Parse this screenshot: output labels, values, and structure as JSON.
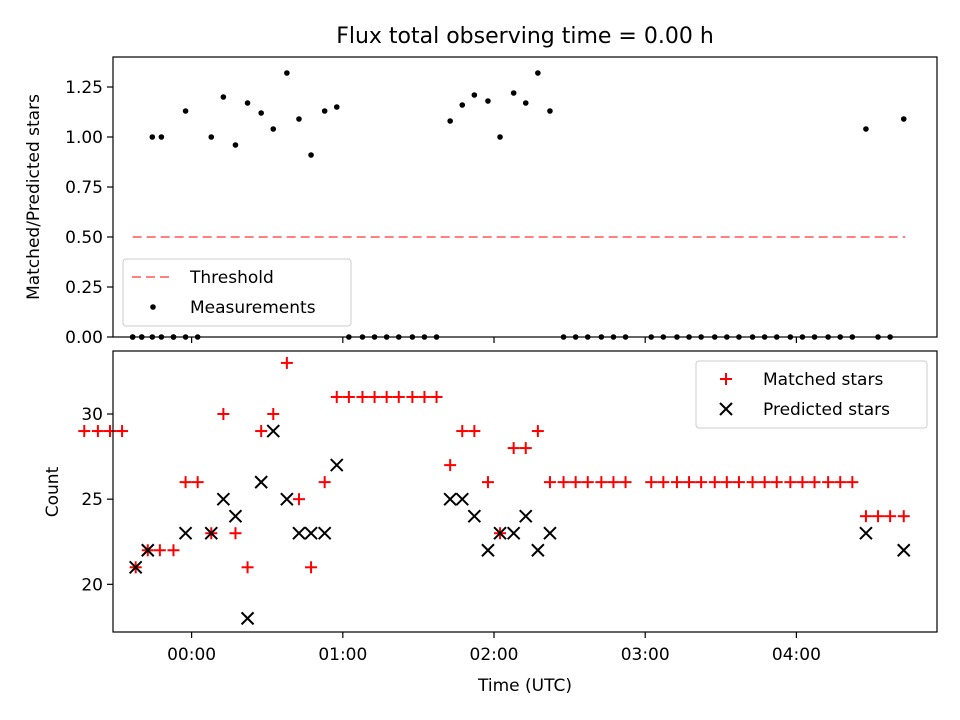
{
  "chart_data": [
    {
      "type": "scatter",
      "title": "Flux total observing time = 0.00 h",
      "xlabel": "",
      "ylabel": "Matched/Predicted stars",
      "ylim": [
        0,
        1.4
      ],
      "yticks": [
        0.0,
        0.25,
        0.5,
        0.75,
        1.0,
        1.25
      ],
      "ytick_labels": [
        "0.00",
        "0.25",
        "0.50",
        "0.75",
        "1.00",
        "1.25"
      ],
      "legend_position": "lower-left",
      "threshold": {
        "name": "Threshold",
        "value": 0.5,
        "x_start": -0.39,
        "x_end": 4.72,
        "color": "#ff8080"
      },
      "measurements": {
        "name": "Measurements",
        "color": "#000000",
        "x": [
          -0.39,
          -0.33,
          -0.26,
          -0.2,
          -0.12,
          -0.04,
          0.13,
          0.21,
          0.29,
          0.37,
          0.46,
          0.54,
          0.63,
          0.71,
          0.79,
          0.88,
          0.96,
          1.71,
          1.79,
          1.87,
          1.96,
          2.04,
          2.13,
          2.21,
          2.29,
          2.37,
          4.46,
          4.71
        ],
        "y": [
          0.0,
          0.0,
          1.0,
          1.0,
          0.0,
          1.13,
          1.0,
          1.2,
          0.96,
          1.17,
          1.12,
          1.04,
          1.32,
          1.09,
          0.91,
          1.13,
          1.15,
          1.08,
          1.16,
          1.21,
          1.18,
          1.0,
          1.22,
          1.17,
          1.32,
          1.13,
          1.04,
          1.09
        ]
      },
      "zero_measurements_x": [
        -0.39,
        -0.33,
        -0.26,
        -0.2,
        -0.12,
        -0.04,
        0.04,
        1.04,
        1.13,
        1.21,
        1.29,
        1.37,
        1.46,
        1.54,
        1.62,
        2.46,
        2.54,
        2.62,
        2.71,
        2.79,
        2.87,
        3.04,
        3.12,
        3.21,
        3.29,
        3.37,
        3.46,
        3.54,
        3.62,
        3.71,
        3.79,
        3.87,
        3.96,
        4.04,
        4.12,
        4.21,
        4.29,
        4.37,
        4.54,
        4.62
      ]
    },
    {
      "type": "scatter",
      "xlabel": "Time (UTC)",
      "ylabel": "Count",
      "ylim": [
        17.2,
        33.7
      ],
      "xlim": [
        -0.52,
        4.93
      ],
      "yticks": [
        20,
        25,
        30
      ],
      "ytick_labels": [
        "20",
        "25",
        "30"
      ],
      "xticks": [
        0,
        1,
        2,
        3,
        4
      ],
      "xtick_labels": [
        "00:00",
        "01:00",
        "02:00",
        "03:00",
        "04:00"
      ],
      "legend_position": "upper-right",
      "series": [
        {
          "name": "Matched stars",
          "marker": "plus",
          "color": "#ff0000",
          "x": [
            -0.71,
            -0.62,
            -0.54,
            -0.46,
            -0.37,
            -0.29,
            -0.21,
            -0.12,
            -0.04,
            0.04,
            0.13,
            0.21,
            0.29,
            0.37,
            0.46,
            0.54,
            0.63,
            0.71,
            0.79,
            0.88,
            0.96,
            1.04,
            1.13,
            1.21,
            1.29,
            1.37,
            1.46,
            1.54,
            1.62,
            1.71,
            1.79,
            1.87,
            1.96,
            2.04,
            2.13,
            2.21,
            2.29,
            2.37,
            2.46,
            2.54,
            2.62,
            2.71,
            2.79,
            2.87,
            3.04,
            3.12,
            3.21,
            3.29,
            3.37,
            3.46,
            3.54,
            3.62,
            3.71,
            3.79,
            3.87,
            3.96,
            4.04,
            4.12,
            4.21,
            4.29,
            4.37,
            4.46,
            4.54,
            4.62,
            4.71
          ],
          "y": [
            29,
            29,
            29,
            29,
            21,
            22,
            22,
            22,
            26,
            26,
            23,
            30,
            23,
            21,
            29,
            30,
            33,
            25,
            21,
            26,
            31,
            31,
            31,
            31,
            31,
            31,
            31,
            31,
            31,
            27,
            29,
            29,
            26,
            23,
            28,
            28,
            29,
            26,
            26,
            26,
            26,
            26,
            26,
            26,
            26,
            26,
            26,
            26,
            26,
            26,
            26,
            26,
            26,
            26,
            26,
            26,
            26,
            26,
            26,
            26,
            26,
            24,
            24,
            24,
            24
          ]
        },
        {
          "name": "Predicted stars",
          "marker": "x",
          "color": "#000000",
          "x": [
            -0.37,
            -0.29,
            -0.04,
            0.13,
            0.21,
            0.29,
            0.37,
            0.46,
            0.54,
            0.63,
            0.71,
            0.79,
            0.88,
            0.96,
            1.71,
            1.79,
            1.87,
            1.96,
            2.04,
            2.13,
            2.21,
            2.29,
            2.37,
            4.46,
            4.71
          ],
          "y": [
            21,
            22,
            23,
            23,
            25,
            24,
            18,
            26,
            29,
            25,
            23,
            23,
            23,
            27,
            25,
            25,
            24,
            22,
            23,
            23,
            24,
            22,
            23,
            23,
            22
          ]
        }
      ]
    }
  ]
}
